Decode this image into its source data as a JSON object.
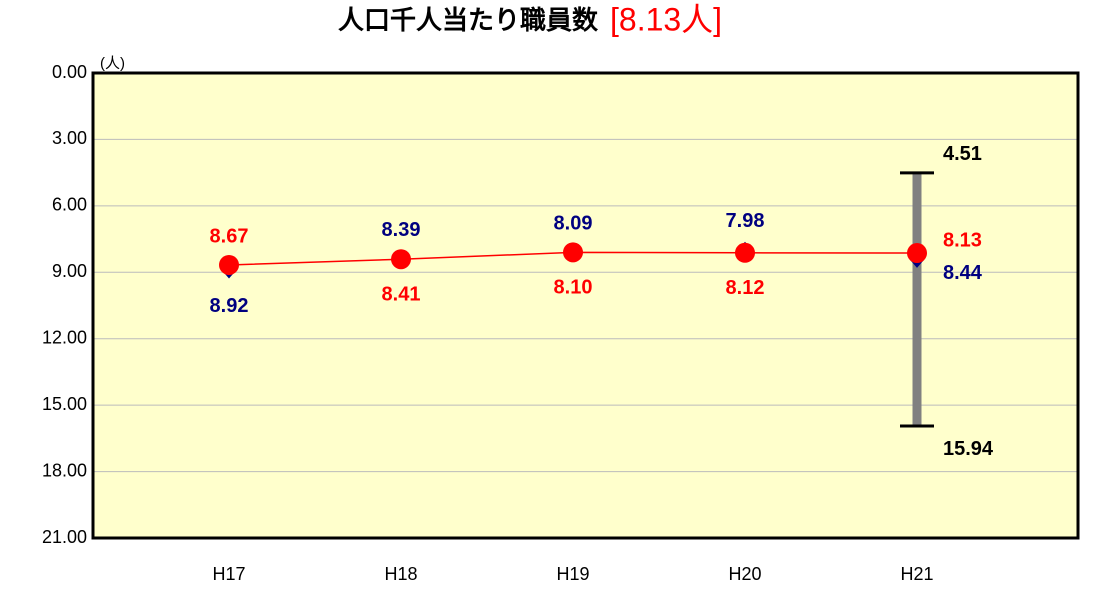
{
  "chart_data": {
    "type": "line",
    "title": "人口千人当たり職員数",
    "title_highlight": "[8.13人]",
    "y_label": "(人)",
    "categories": [
      "H17",
      "H18",
      "H19",
      "H20",
      "H21"
    ],
    "series": [
      {
        "color": "#ff0000",
        "marker": "circle",
        "line": true,
        "values": [
          8.67,
          8.41,
          8.1,
          8.12,
          8.13
        ],
        "value_labels": [
          "8.67",
          "8.41",
          "8.10",
          "8.12",
          "8.13"
        ]
      },
      {
        "color": "#000080",
        "marker": "diamond",
        "line": false,
        "values": [
          8.92,
          8.39,
          8.09,
          7.98,
          8.44
        ],
        "value_labels": [
          "8.92",
          "8.39",
          "8.09",
          "7.98",
          "8.44"
        ]
      }
    ],
    "range": [
      4.51,
      15.94
    ],
    "range_color": "#808080",
    "y_inverted": true,
    "ylim": [
      0,
      21
    ],
    "yticks": [
      {
        "value": 0,
        "label": "0.00"
      },
      {
        "value": 3,
        "label": "3.00"
      },
      {
        "value": 6,
        "label": "6.00"
      },
      {
        "value": 9,
        "label": "9.00"
      },
      {
        "value": 12,
        "label": "12.00"
      },
      {
        "value": 15,
        "label": "15.00"
      },
      {
        "value": 18,
        "label": "18.00"
      },
      {
        "value": 21,
        "label": "21.00"
      }
    ],
    "grid": true,
    "background": "#ffffcc"
  }
}
